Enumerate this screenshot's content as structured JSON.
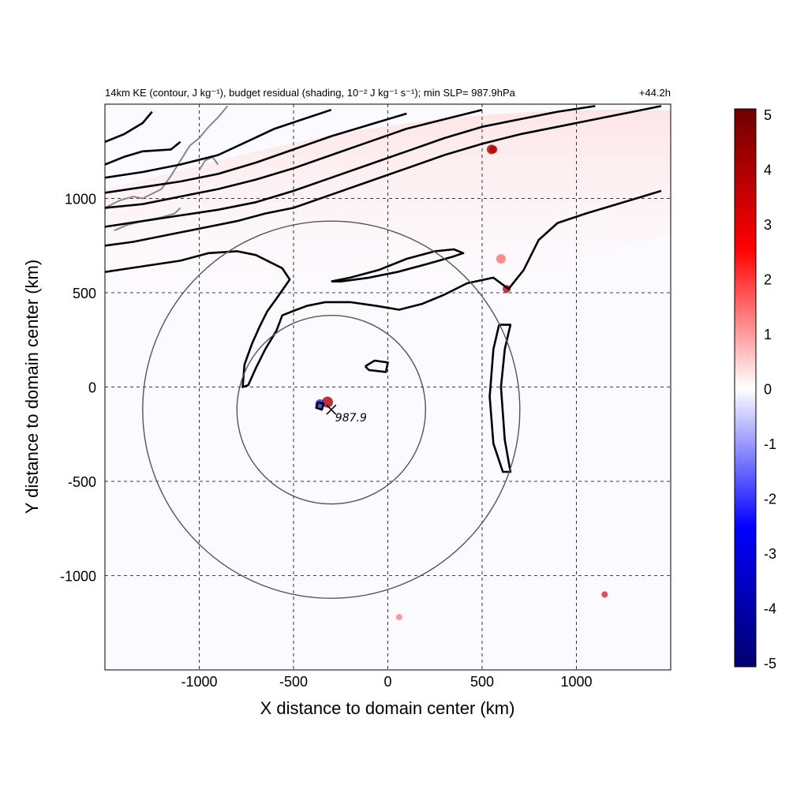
{
  "chart_data": {
    "type": "heatmap",
    "title_left": "14km KE (contour, J kg⁻¹), budget residual (shading, 10⁻² J kg⁻¹ s⁻¹); min SLP= 987.9hPa",
    "title_right": "+44.2h",
    "xlabel": "X distance to domain center (km)",
    "ylabel": "Y distance to domain center (km)",
    "xlim": [
      -1500,
      1500
    ],
    "ylim": [
      -1500,
      1500
    ],
    "xticks": [
      -1000,
      -500,
      0,
      500,
      1000
    ],
    "yticks": [
      -1000,
      -500,
      0,
      500,
      1000
    ],
    "grid": true,
    "colorbar": {
      "range": [
        -5,
        5
      ],
      "ticks": [
        5,
        4,
        3,
        2,
        1,
        0,
        -1,
        -2,
        -3,
        -4,
        -5
      ],
      "colors": [
        "#00006e",
        "#0000ff",
        "#ffffff",
        "#ff0000",
        "#6e0000"
      ]
    },
    "storm_center": {
      "x": -300,
      "y": -120,
      "label": "987.9"
    },
    "range_rings_km": [
      500,
      1000
    ],
    "contours": [
      [
        [
          -1500,
          750
        ],
        [
          -1350,
          770
        ],
        [
          -1150,
          810
        ],
        [
          -950,
          850
        ],
        [
          -800,
          880
        ],
        [
          -650,
          920
        ],
        [
          -500,
          950
        ],
        [
          -300,
          1020
        ],
        [
          -100,
          1090
        ],
        [
          100,
          1160
        ],
        [
          300,
          1230
        ],
        [
          500,
          1290
        ],
        [
          700,
          1340
        ],
        [
          900,
          1380
        ],
        [
          1100,
          1420
        ],
        [
          1300,
          1460
        ],
        [
          1450,
          1490
        ]
      ],
      [
        [
          -1500,
          850
        ],
        [
          -1300,
          880
        ],
        [
          -1100,
          910
        ],
        [
          -900,
          940
        ],
        [
          -700,
          980
        ],
        [
          -500,
          1040
        ],
        [
          -300,
          1110
        ],
        [
          -100,
          1180
        ],
        [
          100,
          1250
        ],
        [
          300,
          1320
        ],
        [
          500,
          1380
        ],
        [
          700,
          1420
        ],
        [
          900,
          1460
        ],
        [
          1100,
          1490
        ]
      ],
      [
        [
          -1500,
          950
        ],
        [
          -1300,
          970
        ],
        [
          -1100,
          1010
        ],
        [
          -900,
          1050
        ],
        [
          -700,
          1100
        ],
        [
          -500,
          1160
        ],
        [
          -300,
          1230
        ],
        [
          -100,
          1300
        ],
        [
          100,
          1370
        ],
        [
          300,
          1420
        ],
        [
          500,
          1470
        ]
      ],
      [
        [
          -1500,
          1030
        ],
        [
          -1300,
          1060
        ],
        [
          -1100,
          1090
        ],
        [
          -900,
          1130
        ],
        [
          -700,
          1190
        ],
        [
          -500,
          1260
        ],
        [
          -300,
          1330
        ],
        [
          -100,
          1390
        ],
        [
          100,
          1450
        ]
      ],
      [
        [
          -1500,
          1110
        ],
        [
          -1300,
          1140
        ],
        [
          -1100,
          1180
        ],
        [
          -900,
          1230
        ],
        [
          -750,
          1300
        ],
        [
          -600,
          1370
        ],
        [
          -450,
          1420
        ],
        [
          -300,
          1470
        ]
      ],
      [
        [
          -1500,
          1300
        ],
        [
          -1400,
          1340
        ],
        [
          -1300,
          1400
        ],
        [
          -1250,
          1460
        ]
      ],
      [
        [
          -1500,
          1180
        ],
        [
          -1400,
          1220
        ],
        [
          -1300,
          1250
        ],
        [
          -1150,
          1260
        ],
        [
          -1100,
          1300
        ]
      ],
      [
        [
          -1500,
          610
        ],
        [
          -1300,
          640
        ],
        [
          -1100,
          670
        ],
        [
          -950,
          710
        ],
        [
          -800,
          720
        ],
        [
          -700,
          700
        ],
        [
          -560,
          630
        ],
        [
          -520,
          570
        ],
        [
          -590,
          470
        ],
        [
          -640,
          400
        ],
        [
          -680,
          320
        ],
        [
          -720,
          230
        ],
        [
          -760,
          120
        ],
        [
          -770,
          0
        ],
        [
          -740,
          10
        ],
        [
          -700,
          100
        ],
        [
          -650,
          200
        ],
        [
          -590,
          300
        ],
        [
          -560,
          380
        ],
        [
          -510,
          400
        ],
        [
          -430,
          430
        ],
        [
          -330,
          450
        ],
        [
          -200,
          450
        ],
        [
          -60,
          430
        ],
        [
          60,
          410
        ],
        [
          180,
          440
        ],
        [
          300,
          490
        ],
        [
          420,
          550
        ],
        [
          560,
          580
        ],
        [
          640,
          520
        ],
        [
          720,
          620
        ],
        [
          800,
          780
        ],
        [
          900,
          870
        ],
        [
          1050,
          920
        ],
        [
          1250,
          980
        ],
        [
          1450,
          1040
        ]
      ],
      [
        [
          -300,
          560
        ],
        [
          -200,
          580
        ],
        [
          -50,
          620
        ],
        [
          100,
          680
        ],
        [
          250,
          720
        ],
        [
          350,
          730
        ],
        [
          400,
          710
        ],
        [
          340,
          690
        ],
        [
          200,
          650
        ],
        [
          50,
          610
        ],
        [
          -100,
          580
        ],
        [
          -250,
          560
        ],
        [
          -300,
          560
        ]
      ],
      [
        [
          -120,
          110
        ],
        [
          -70,
          140
        ],
        [
          0,
          130
        ],
        [
          -10,
          80
        ],
        [
          -100,
          90
        ],
        [
          -120,
          110
        ]
      ],
      [
        [
          590,
          330
        ],
        [
          560,
          200
        ],
        [
          540,
          -50
        ],
        [
          560,
          -300
        ],
        [
          610,
          -450
        ],
        [
          650,
          -450
        ],
        [
          620,
          -280
        ],
        [
          600,
          0
        ],
        [
          620,
          200
        ],
        [
          650,
          330
        ],
        [
          590,
          330
        ]
      ],
      [
        [
          -370,
          -80
        ],
        [
          -340,
          -90
        ],
        [
          -350,
          -120
        ],
        [
          -380,
          -110
        ],
        [
          -370,
          -80
        ]
      ]
    ],
    "coastline": [
      [
        [
          -1500,
          950
        ],
        [
          -1420,
          990
        ],
        [
          -1350,
          1010
        ],
        [
          -1300,
          1000
        ],
        [
          -1200,
          1050
        ],
        [
          -1150,
          1120
        ],
        [
          -1100,
          1200
        ],
        [
          -1050,
          1280
        ],
        [
          -1000,
          1320
        ],
        [
          -950,
          1380
        ],
        [
          -900,
          1430
        ],
        [
          -850,
          1490
        ]
      ],
      [
        [
          -1450,
          830
        ],
        [
          -1380,
          860
        ],
        [
          -1300,
          880
        ],
        [
          -1200,
          900
        ],
        [
          -1130,
          920
        ],
        [
          -1100,
          950
        ]
      ],
      [
        [
          -1000,
          1150
        ],
        [
          -970,
          1200
        ],
        [
          -930,
          1220
        ],
        [
          -900,
          1180
        ]
      ]
    ]
  }
}
